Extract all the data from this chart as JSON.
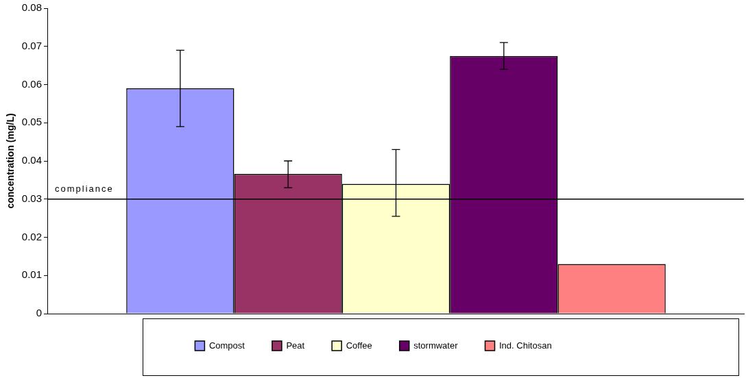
{
  "chart_data": {
    "type": "bar",
    "ylabel": "concentration (mg/L)",
    "categories": [
      null
    ],
    "series": [
      {
        "name": "Compost",
        "color": "#9999ff",
        "values": [
          0.059
        ],
        "errors": [
          [
            0.049,
            0.069
          ]
        ]
      },
      {
        "name": "Peat",
        "color": "#993366",
        "values": [
          0.0366
        ],
        "errors": [
          [
            0.033,
            0.04
          ]
        ]
      },
      {
        "name": "Coffee",
        "color": "#ffffcc",
        "values": [
          0.034
        ],
        "errors": [
          [
            0.0255,
            0.043
          ]
        ]
      },
      {
        "name": "stormwater",
        "color": "#660066",
        "values": [
          0.0675
        ],
        "errors": [
          [
            0.064,
            0.071
          ]
        ]
      },
      {
        "name": "Ind. Chitosan",
        "color": "#ff8080",
        "values": [
          0.013
        ],
        "errors": [
          null
        ]
      }
    ],
    "ylim": [
      0,
      0.08
    ],
    "yticks": [
      0,
      0.01,
      0.02,
      0.03,
      0.04,
      0.05,
      0.06,
      0.07,
      0.08
    ],
    "ref_lines": [
      {
        "axis": "y",
        "value": 0.03,
        "label": "compliance",
        "color": "#000000"
      }
    ],
    "legend": "bottom",
    "grid": false
  }
}
